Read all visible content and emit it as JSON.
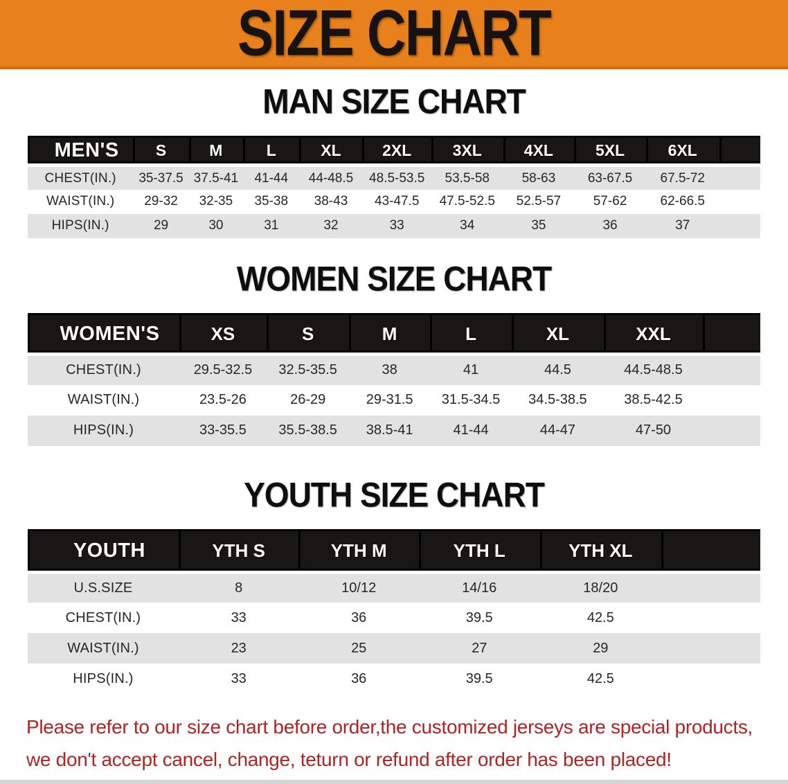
{
  "banner": {
    "title": "SIZE CHART",
    "bg_color": "#E8811C",
    "text_color": "#161312"
  },
  "men": {
    "heading": "MAN SIZE CHART",
    "header_label": "MEN'S",
    "columns": [
      "S",
      "M",
      "L",
      "XL",
      "2XL",
      "3XL",
      "4XL",
      "5XL",
      "6XL"
    ],
    "rows": [
      {
        "label": "CHEST(IN.)",
        "values": [
          "35-37.5",
          "37.5-41",
          "41-44",
          "44-48.5",
          "48.5-53.5",
          "53.5-58",
          "58-63",
          "63-67.5",
          "67.5-72"
        ]
      },
      {
        "label": "WAIST(IN.)",
        "values": [
          "29-32",
          "32-35",
          "35-38",
          "38-43",
          "43-47.5",
          "47.5-52.5",
          "52.5-57",
          "57-62",
          "62-66.5"
        ]
      },
      {
        "label": "HIPS(IN.)",
        "values": [
          "29",
          "30",
          "31",
          "32",
          "33",
          "34",
          "35",
          "36",
          "37"
        ]
      }
    ]
  },
  "women": {
    "heading": "WOMEN SIZE CHART",
    "header_label": "WOMEN'S",
    "columns": [
      "XS",
      "S",
      "M",
      "L",
      "XL",
      "XXL"
    ],
    "rows": [
      {
        "label": "CHEST(IN.)",
        "values": [
          "29.5-32.5",
          "32.5-35.5",
          "38",
          "41",
          "44.5",
          "44.5-48.5"
        ]
      },
      {
        "label": "WAIST(IN.)",
        "values": [
          "23.5-26",
          "26-29",
          "29-31.5",
          "31.5-34.5",
          "34.5-38.5",
          "38.5-42.5"
        ]
      },
      {
        "label": "HIPS(IN.)",
        "values": [
          "33-35.5",
          "35.5-38.5",
          "38.5-41",
          "41-44",
          "44-47",
          "47-50"
        ]
      }
    ]
  },
  "youth": {
    "heading": "YOUTH SIZE CHART",
    "header_label": "YOUTH",
    "columns": [
      "YTH S",
      "YTH M",
      "YTH L",
      "YTH XL"
    ],
    "rows": [
      {
        "label": "U.S.SIZE",
        "values": [
          "8",
          "10/12",
          "14/16",
          "18/20"
        ]
      },
      {
        "label": "CHEST(IN.)",
        "values": [
          "33",
          "36",
          "39.5",
          "42.5"
        ]
      },
      {
        "label": "WAIST(IN.)",
        "values": [
          "23",
          "25",
          "27",
          "29"
        ]
      },
      {
        "label": "HIPS(IN.)",
        "values": [
          "33",
          "36",
          "39.5",
          "42.5"
        ]
      }
    ]
  },
  "footer": {
    "line1": "Please refer to our size chart before order,the customized jerseys are special products,",
    "line2": "we don't accept cancel, change, teturn or refund after order has been placed!",
    "text_color": "#B22222"
  }
}
